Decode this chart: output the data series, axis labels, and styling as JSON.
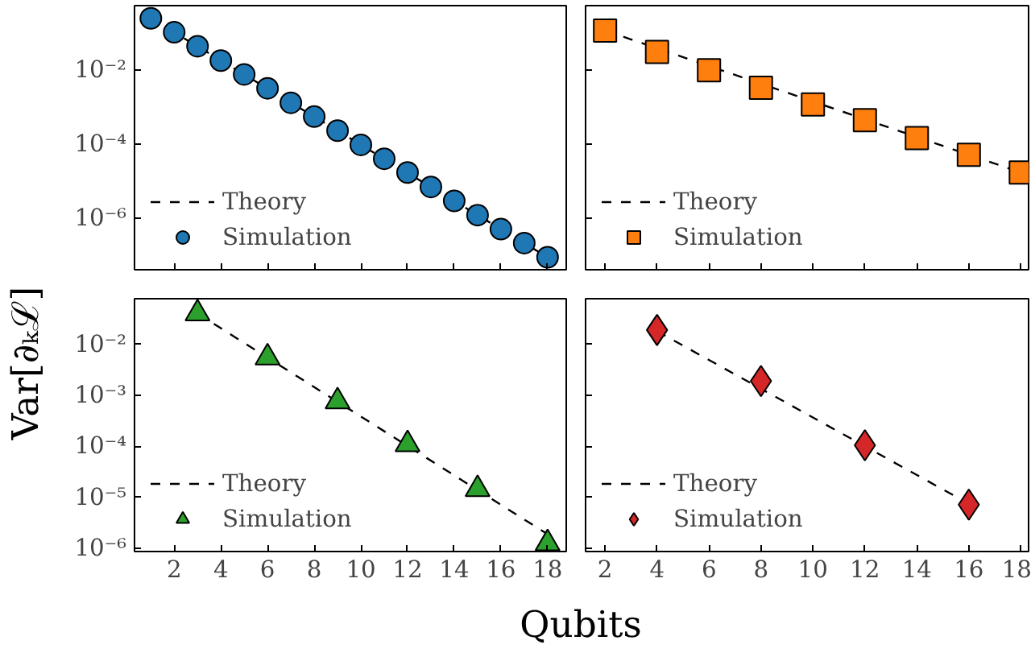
{
  "chart_data": [
    {
      "type": "scatter",
      "marker": "circle",
      "ylabel": "Var[∂ₖℒ]",
      "x": [
        1,
        2,
        3,
        4,
        5,
        6,
        7,
        8,
        9,
        10,
        11,
        12,
        13,
        14,
        15,
        16,
        17,
        18
      ],
      "series": [
        {
          "name": "Theory",
          "type": "line",
          "color": "#000000",
          "line_style": "dashed",
          "marker": "none",
          "x": [
            1,
            18
          ],
          "values": [
            0.25,
            8.7e-08
          ]
        },
        {
          "name": "Simulation",
          "color": "#1f77b4",
          "values": [
            0.25,
            0.105,
            0.044,
            0.018,
            0.0076,
            0.0032,
            0.0013,
            0.00055,
            0.00023,
            9.5e-05,
            4e-05,
            1.7e-05,
            6.9e-06,
            2.9e-06,
            1.2e-06,
            5e-07,
            2.1e-07,
            8.7e-08
          ]
        }
      ],
      "log": "y",
      "xlim": [
        0.3,
        18.8
      ],
      "ylim": [
        4e-08,
        0.55
      ],
      "xticks": [
        2,
        4,
        6,
        8,
        10,
        12,
        14,
        16,
        18
      ],
      "yticks": [
        {
          "value": 0.01,
          "label": "10⁻²"
        },
        {
          "value": 0.0001,
          "label": "10⁻⁴"
        },
        {
          "value": 1e-06,
          "label": "10⁻⁶"
        }
      ],
      "legend": "bottom left",
      "tick_labels": "y"
    },
    {
      "type": "scatter",
      "marker": "square",
      "x": [
        2,
        4,
        6,
        8,
        10,
        12,
        14,
        16,
        18
      ],
      "series": [
        {
          "name": "Theory",
          "type": "line",
          "color": "#000000",
          "line_style": "dashed",
          "marker": "none",
          "x": [
            2,
            18
          ],
          "values": [
            0.117,
            1.7e-05
          ]
        },
        {
          "name": "Simulation",
          "color": "#ff7f0e",
          "values": [
            0.117,
            0.031,
            0.0098,
            0.0033,
            0.00117,
            0.00044,
            0.000145,
            5.1e-05,
            1.7e-05
          ]
        }
      ],
      "log": "y",
      "xlim": [
        1.25,
        18.3
      ],
      "ylim": [
        4e-08,
        0.55
      ],
      "xticks": [
        2,
        4,
        6,
        8,
        10,
        12,
        14,
        16,
        18
      ],
      "yticks": [
        {
          "value": 0.01,
          "label": null
        },
        {
          "value": 0.0001,
          "label": null
        },
        {
          "value": 1e-06,
          "label": null
        }
      ],
      "legend": "bottom left",
      "tick_labels": false
    },
    {
      "type": "scatter",
      "marker": "triangle",
      "xlabel": "Qubits",
      "x": [
        3,
        6,
        9,
        12,
        15,
        18
      ],
      "series": [
        {
          "name": "Theory",
          "type": "line",
          "color": "#000000",
          "line_style": "dashed",
          "marker": "none",
          "x": [
            3,
            18
          ],
          "values": [
            0.04,
            1.9e-06
          ]
        },
        {
          "name": "Simulation",
          "color": "#2ca02c",
          "values": [
            0.04,
            0.0055,
            0.00076,
            0.00011,
            1.45e-05,
            1.26e-06
          ]
        }
      ],
      "log": "y",
      "xlim": [
        0.3,
        18.8
      ],
      "ylim": [
        8.7e-07,
        0.078
      ],
      "xticks": [
        2,
        4,
        6,
        8,
        10,
        12,
        14,
        16,
        18
      ],
      "yticks": [
        {
          "value": 0.01,
          "label": "10⁻²"
        },
        {
          "value": 0.001,
          "label": "10⁻³"
        },
        {
          "value": 0.0001,
          "label": "10⁻⁴"
        },
        {
          "value": 1e-05,
          "label": "10⁻⁵"
        },
        {
          "value": 1e-06,
          "label": "10⁻⁶"
        }
      ],
      "legend": "bottom left"
    },
    {
      "type": "scatter",
      "marker": "diamond",
      "x": [
        4,
        8,
        12,
        16
      ],
      "series": [
        {
          "name": "Theory",
          "type": "line",
          "color": "#000000",
          "line_style": "dashed",
          "marker": "none",
          "x": [
            4,
            16
          ],
          "values": [
            0.018,
            7.5e-06
          ]
        },
        {
          "name": "Simulation",
          "color": "#d62728",
          "values": [
            0.019,
            0.0019,
            0.000105,
            7.2e-06
          ]
        }
      ],
      "log": "y",
      "xlim": [
        1.25,
        18.3
      ],
      "ylim": [
        8.7e-07,
        0.078
      ],
      "xticks": [
        2,
        4,
        6,
        8,
        10,
        12,
        14,
        16,
        18
      ],
      "yticks": [
        {
          "value": 0.01,
          "label": null
        },
        {
          "value": 0.001,
          "label": null
        },
        {
          "value": 0.0001,
          "label": null
        },
        {
          "value": 1e-05,
          "label": null
        },
        {
          "value": 1e-06,
          "label": null
        }
      ],
      "legend": "bottom left",
      "tick_labels": "x"
    }
  ]
}
